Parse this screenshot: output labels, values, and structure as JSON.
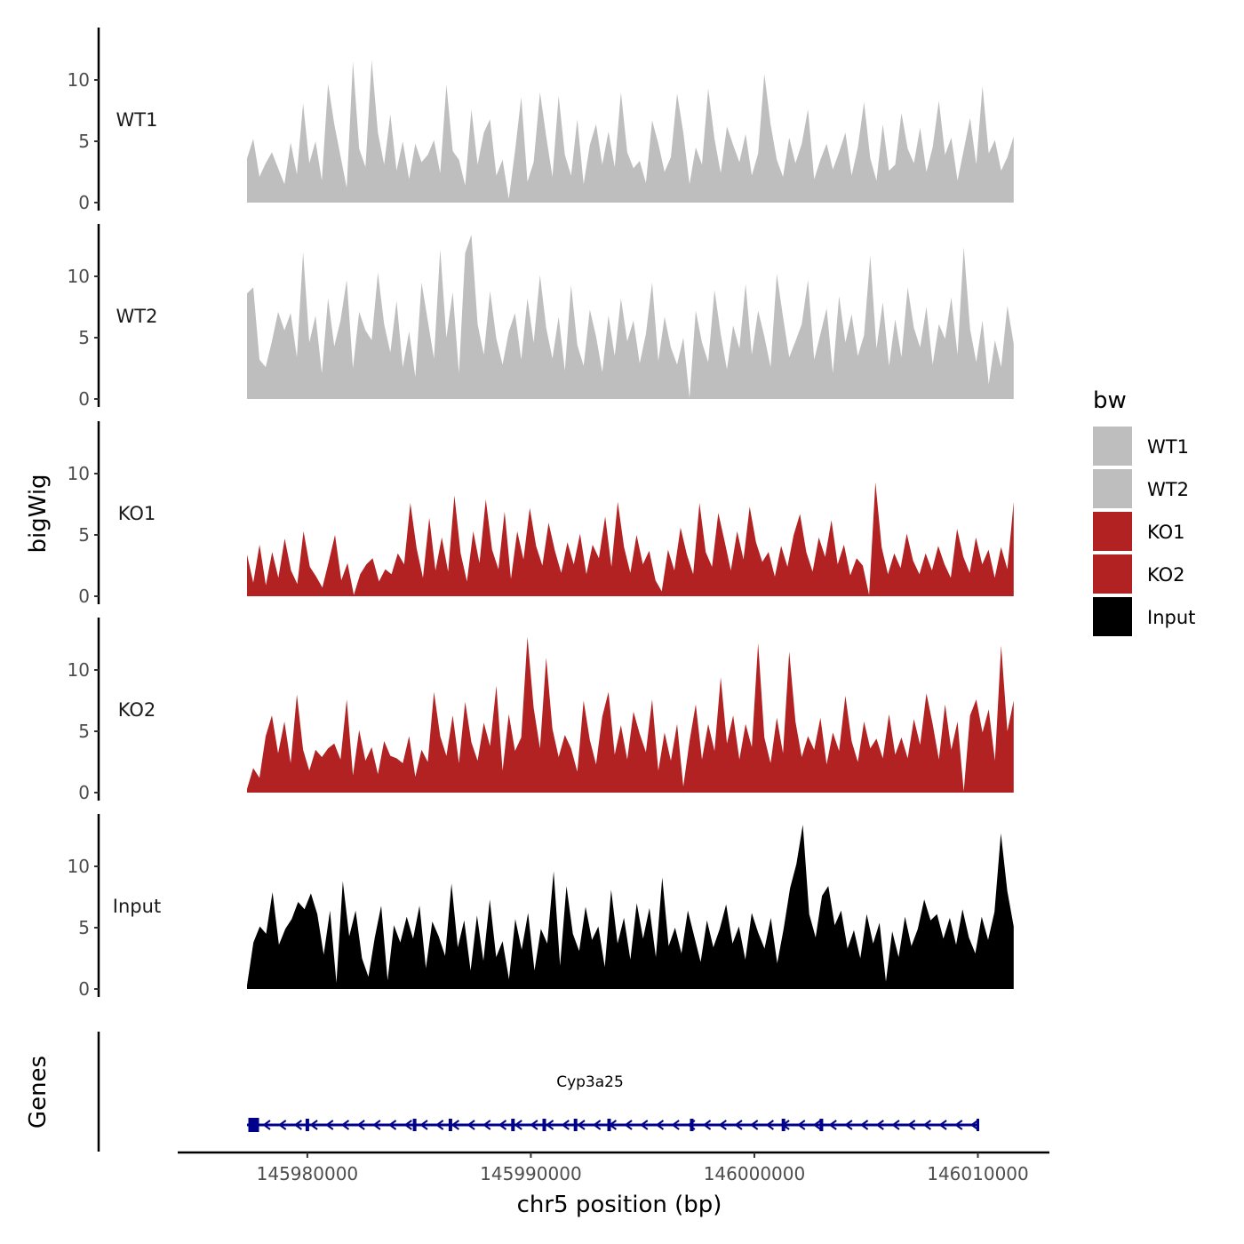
{
  "chart_data": {
    "type": "area",
    "title": "",
    "xlabel": "chr5 position (bp)",
    "ylabel": "bigWig",
    "gene_track_label": "Genes",
    "xlim": [
      145974200,
      146013200
    ],
    "ylim": [
      0,
      14
    ],
    "x_ticks": [
      145980000,
      145990000,
      146000000,
      146010000
    ],
    "x_tick_labels": [
      "145980000",
      "145990000",
      "146000000",
      "146010000"
    ],
    "y_ticks": [
      0,
      5,
      10
    ],
    "y_tick_labels": [
      "0",
      "5",
      "10"
    ],
    "series": [
      {
        "name": "WT1",
        "color": "#bebebe",
        "x_start": 145977300,
        "x_end": 146011600,
        "values": [
          3.6,
          5.2,
          2.1,
          3.2,
          4.1,
          2.8,
          1.5,
          4.9,
          2.3,
          8.1,
          3.2,
          5.0,
          1.8,
          9.7,
          6.4,
          3.8,
          1.2,
          11.5,
          4.4,
          2.9,
          11.6,
          5.7,
          3.1,
          7.2,
          2.6,
          5.0,
          1.9,
          4.8,
          3.3,
          3.9,
          5.1,
          2.4,
          9.6,
          4.2,
          3.5,
          1.4,
          7.6,
          3.1,
          5.7,
          6.8,
          2.2,
          3.5,
          0.3,
          4.2,
          8.6,
          1.7,
          3.3,
          9.0,
          5.4,
          2.1,
          8.7,
          3.9,
          2.2,
          6.8,
          1.5,
          4.7,
          6.4,
          3.1,
          5.8,
          2.9,
          9.0,
          4.1,
          2.8,
          3.4,
          1.6,
          6.7,
          4.8,
          2.5,
          3.7,
          8.9,
          5.7,
          1.5,
          4.5,
          3.1,
          9.3,
          5.2,
          2.4,
          6.2,
          4.7,
          3.3,
          5.6,
          2.2,
          4.0,
          10.5,
          6.4,
          3.5,
          2.1,
          5.3,
          3.2,
          4.8,
          7.6,
          1.9,
          3.5,
          4.8,
          2.7,
          4.1,
          5.7,
          2.2,
          4.5,
          8.2,
          3.6,
          1.8,
          6.4,
          2.6,
          3.1,
          7.3,
          4.4,
          3.2,
          6.1,
          2.5,
          4.5,
          8.3,
          3.9,
          5.3,
          1.8,
          4.3,
          6.9,
          3.1,
          9.5,
          4.0,
          5.1,
          2.6,
          3.7,
          5.4
        ]
      },
      {
        "name": "WT2",
        "color": "#bebebe",
        "x_start": 145977300,
        "x_end": 146011600,
        "values": [
          8.6,
          9.1,
          3.2,
          2.6,
          4.7,
          7.1,
          5.6,
          7.0,
          3.4,
          12.0,
          4.6,
          6.8,
          2.1,
          8.2,
          4.3,
          6.4,
          9.7,
          2.5,
          7.1,
          5.6,
          4.8,
          10.3,
          6.1,
          3.8,
          8.0,
          2.6,
          5.5,
          1.8,
          9.5,
          6.4,
          3.3,
          12.2,
          5.0,
          8.7,
          2.1,
          11.9,
          13.4,
          6.1,
          3.6,
          8.8,
          4.9,
          2.8,
          5.5,
          7.0,
          3.2,
          8.2,
          4.6,
          10.1,
          5.8,
          3.3,
          6.7,
          2.3,
          9.3,
          4.4,
          2.7,
          7.3,
          5.1,
          2.2,
          6.8,
          3.5,
          8.2,
          4.7,
          6.4,
          2.9,
          5.3,
          9.5,
          3.1,
          6.7,
          4.2,
          2.8,
          5.0,
          0.1,
          7.2,
          4.6,
          3.0,
          8.9,
          5.3,
          2.4,
          6.0,
          4.1,
          9.4,
          3.6,
          7.2,
          5.1,
          2.6,
          10.2,
          6.7,
          3.4,
          4.7,
          6.1,
          9.7,
          3.2,
          5.3,
          7.4,
          2.1,
          8.4,
          4.6,
          6.9,
          3.5,
          5.2,
          11.7,
          4.1,
          7.9,
          2.7,
          6.5,
          3.4,
          9.1,
          5.8,
          4.2,
          7.5,
          2.8,
          6.1,
          4.9,
          8.3,
          3.6,
          12.4,
          5.7,
          3.0,
          6.4,
          1.2,
          4.8,
          2.6,
          7.6,
          4.5
        ]
      },
      {
        "name": "KO1",
        "color": "#b22222",
        "x_start": 145977300,
        "x_end": 146011600,
        "values": [
          3.4,
          1.1,
          4.2,
          0.9,
          3.6,
          1.5,
          4.7,
          2.1,
          1.0,
          5.3,
          2.4,
          1.6,
          0.7,
          2.8,
          5.0,
          1.3,
          2.7,
          0.1,
          1.8,
          2.6,
          3.1,
          1.2,
          2.2,
          1.8,
          3.5,
          2.6,
          7.6,
          3.9,
          1.5,
          6.4,
          2.1,
          4.8,
          2.0,
          8.2,
          3.5,
          1.2,
          5.3,
          2.7,
          7.9,
          3.8,
          2.2,
          6.9,
          1.4,
          5.3,
          3.0,
          7.2,
          4.1,
          2.5,
          6.0,
          3.7,
          1.9,
          4.4,
          2.6,
          5.1,
          1.8,
          4.2,
          3.1,
          6.5,
          2.4,
          7.7,
          4.0,
          1.9,
          5.0,
          2.6,
          3.7,
          1.3,
          0.4,
          3.8,
          2.1,
          5.6,
          3.4,
          1.8,
          7.6,
          3.6,
          2.4,
          6.8,
          4.5,
          2.1,
          5.3,
          3.0,
          7.3,
          4.4,
          2.8,
          3.6,
          1.6,
          4.1,
          2.4,
          5.0,
          6.7,
          3.6,
          2.0,
          4.8,
          3.2,
          6.2,
          2.6,
          4.2,
          1.7,
          3.1,
          2.5,
          0.1,
          9.3,
          4.0,
          1.8,
          3.5,
          2.3,
          5.1,
          2.9,
          1.8,
          3.5,
          2.1,
          4.1,
          2.6,
          1.5,
          5.5,
          3.2,
          1.9,
          4.8,
          2.6,
          3.8,
          1.5,
          4.0,
          2.2,
          7.7
        ]
      },
      {
        "name": "KO2",
        "color": "#b22222",
        "x_start": 145977300,
        "x_end": 146011600,
        "values": [
          0.3,
          2.0,
          1.2,
          4.6,
          6.3,
          3.2,
          5.8,
          2.4,
          8.0,
          3.5,
          1.8,
          3.5,
          2.9,
          3.6,
          4.0,
          2.7,
          7.6,
          1.4,
          5.1,
          2.6,
          3.7,
          1.5,
          4.2,
          3.0,
          2.8,
          2.4,
          4.6,
          1.3,
          3.5,
          2.5,
          8.2,
          4.6,
          3.0,
          6.3,
          2.4,
          7.4,
          4.1,
          2.6,
          5.7,
          3.8,
          8.7,
          1.8,
          6.4,
          3.4,
          4.5,
          12.7,
          6.9,
          3.6,
          11.0,
          5.2,
          2.9,
          4.7,
          3.6,
          1.7,
          7.5,
          4.3,
          2.3,
          6.2,
          8.2,
          3.1,
          5.5,
          2.7,
          6.6,
          4.8,
          3.3,
          7.6,
          1.8,
          4.9,
          2.6,
          5.6,
          0.5,
          4.2,
          7.2,
          2.7,
          5.6,
          3.4,
          9.4,
          4.0,
          6.3,
          2.7,
          5.6,
          3.7,
          12.2,
          4.5,
          2.4,
          6.1,
          3.2,
          11.5,
          5.8,
          2.9,
          4.6,
          3.5,
          6.1,
          2.3,
          4.9,
          3.4,
          7.9,
          4.2,
          2.5,
          5.8,
          3.6,
          4.4,
          2.8,
          6.4,
          3.1,
          4.5,
          2.8,
          6.0,
          3.9,
          8.1,
          5.6,
          2.7,
          7.2,
          3.5,
          5.8,
          0.1,
          6.3,
          7.6,
          4.9,
          6.8,
          2.6,
          12.0,
          5.0,
          7.5
        ]
      },
      {
        "name": "Input",
        "color": "#000000",
        "x_start": 145977300,
        "x_end": 146011600,
        "values": [
          0.3,
          3.8,
          5.1,
          4.5,
          7.9,
          3.6,
          4.9,
          5.7,
          7.1,
          6.5,
          7.8,
          6.1,
          2.8,
          6.4,
          0.5,
          8.8,
          4.3,
          6.4,
          2.5,
          1.0,
          4.2,
          6.8,
          0.7,
          5.2,
          3.8,
          5.9,
          4.1,
          6.8,
          1.7,
          5.5,
          4.3,
          2.7,
          8.6,
          3.4,
          5.6,
          1.5,
          6.0,
          2.3,
          7.3,
          2.6,
          3.9,
          0.8,
          5.7,
          3.2,
          6.2,
          1.5,
          4.9,
          3.7,
          9.6,
          1.9,
          8.4,
          4.5,
          3.1,
          6.7,
          4.0,
          5.1,
          1.8,
          8.1,
          3.7,
          5.8,
          2.4,
          7.0,
          4.1,
          6.6,
          2.6,
          9.1,
          3.5,
          5.0,
          2.9,
          6.4,
          4.3,
          2.2,
          5.6,
          3.4,
          4.9,
          6.9,
          3.7,
          5.1,
          2.4,
          6.2,
          4.6,
          3.3,
          5.8,
          2.1,
          4.9,
          8.2,
          10.2,
          13.4,
          6.1,
          4.2,
          7.6,
          8.4,
          5.2,
          6.4,
          3.3,
          4.8,
          2.5,
          6.1,
          3.7,
          5.4,
          0.6,
          4.7,
          2.6,
          5.9,
          3.5,
          4.9,
          7.3,
          5.6,
          6.1,
          4.1,
          5.8,
          3.6,
          6.5,
          4.2,
          2.9,
          5.9,
          4.0,
          6.3,
          12.7,
          8.0,
          5.1
        ]
      }
    ],
    "gene": {
      "name": "Cyp3a25",
      "start": 145977300,
      "end": 146010000,
      "strand": "-",
      "color": "#00008b",
      "exons": [
        145977600,
        145980000,
        145984800,
        145986400,
        145989200,
        145990600,
        145992000,
        145993500,
        145997200,
        146001300,
        146003000
      ]
    },
    "legend": {
      "title": "bw",
      "position": "right",
      "entries": [
        {
          "label": "WT1",
          "color": "#bebebe"
        },
        {
          "label": "WT2",
          "color": "#bebebe"
        },
        {
          "label": "KO1",
          "color": "#b22222"
        },
        {
          "label": "KO2",
          "color": "#b22222"
        },
        {
          "label": "Input",
          "color": "#000000"
        }
      ]
    }
  }
}
